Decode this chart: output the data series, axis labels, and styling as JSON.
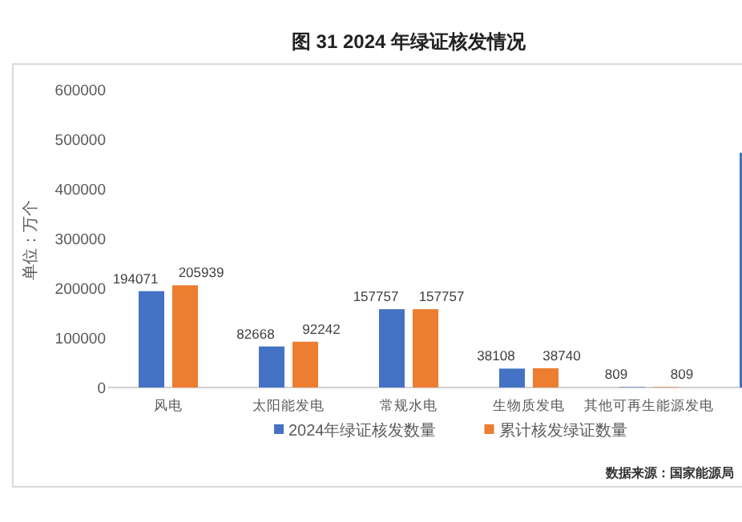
{
  "chart_data": {
    "type": "bar",
    "title": "图 31 2024 年绿证核发情况",
    "ylabel": "单位：万个",
    "categories": [
      "风电",
      "太阳能发电",
      "常规水电",
      "生物质发电",
      "其他可再生能源发电",
      null
    ],
    "series": [
      {
        "name": "2024年绿证核发数量",
        "color": "#4472c4",
        "values": [
          194071,
          82668,
          157757,
          38108,
          809,
          473000
        ],
        "value_labels": [
          "194071",
          "82668",
          "157757",
          "38108",
          "809",
          null
        ]
      },
      {
        "name": "累计核发绿证数量",
        "color": "#ed7d31",
        "values": [
          205939,
          92242,
          157757,
          38740,
          809,
          null
        ],
        "value_labels": [
          "205939",
          "92242",
          "157757",
          "38740",
          "809",
          null
        ]
      }
    ],
    "ylim": [
      0,
      600000
    ],
    "yticks": [
      0,
      100000,
      200000,
      300000,
      400000,
      500000,
      600000
    ],
    "grid": false,
    "legend": "bottom",
    "annotations": [
      "数据来源：国家能源局"
    ]
  }
}
